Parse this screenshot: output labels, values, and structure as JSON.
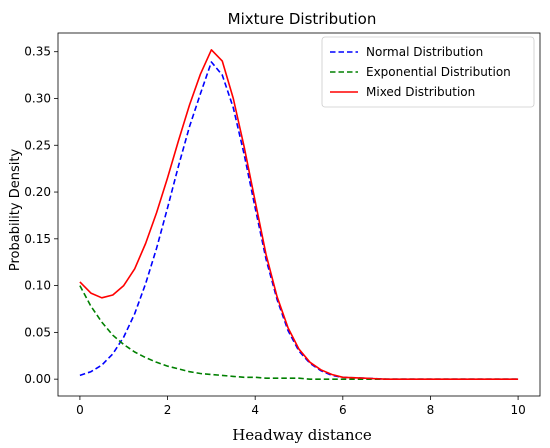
{
  "chart_data": {
    "type": "line",
    "title": "Mixture Distribution",
    "xlabel": "Headway distance",
    "ylabel": "Probability Density",
    "xlim": [
      -0.5,
      10.5
    ],
    "ylim": [
      -0.018,
      0.37
    ],
    "xticks": [
      0,
      2,
      4,
      6,
      8,
      10
    ],
    "xtick_labels": [
      "0",
      "2",
      "4",
      "6",
      "8",
      "10"
    ],
    "yticks": [
      0.0,
      0.05,
      0.1,
      0.15,
      0.2,
      0.25,
      0.3,
      0.35
    ],
    "ytick_labels": [
      "0.00",
      "0.05",
      "0.10",
      "0.15",
      "0.20",
      "0.25",
      "0.30",
      "0.35"
    ],
    "grid": false,
    "legend_position": "top-right",
    "x": [
      0,
      0.25,
      0.5,
      0.75,
      1.0,
      1.25,
      1.5,
      1.75,
      2.0,
      2.25,
      2.5,
      2.75,
      3.0,
      3.25,
      3.5,
      3.75,
      4.0,
      4.25,
      4.5,
      4.75,
      5.0,
      5.25,
      5.5,
      5.75,
      6.0,
      6.5,
      7.0,
      7.5,
      8.0,
      8.5,
      9.0,
      9.5,
      10.0
    ],
    "series": [
      {
        "name": "Normal Distribution",
        "color": "#0000ff",
        "style": "dashed",
        "values": [
          0.004,
          0.008,
          0.015,
          0.027,
          0.045,
          0.07,
          0.102,
          0.14,
          0.183,
          0.228,
          0.27,
          0.305,
          0.339,
          0.325,
          0.29,
          0.24,
          0.183,
          0.128,
          0.085,
          0.052,
          0.03,
          0.017,
          0.009,
          0.004,
          0.002,
          0.001,
          0.0,
          0.0,
          0.0,
          0.0,
          0.0,
          0.0,
          0.0
        ]
      },
      {
        "name": "Exponential Distribution",
        "color": "#008000",
        "style": "dashed",
        "values": [
          0.1,
          0.078,
          0.061,
          0.047,
          0.037,
          0.029,
          0.023,
          0.018,
          0.014,
          0.011,
          0.008,
          0.006,
          0.005,
          0.004,
          0.003,
          0.002,
          0.002,
          0.001,
          0.001,
          0.001,
          0.001,
          0.0,
          0.0,
          0.0,
          0.0,
          0.0,
          0.0,
          0.0,
          0.0,
          0.0,
          0.0,
          0.0,
          0.0
        ]
      },
      {
        "name": "Mixed Distribution",
        "color": "#ff0000",
        "style": "solid",
        "values": [
          0.104,
          0.092,
          0.087,
          0.09,
          0.1,
          0.118,
          0.145,
          0.178,
          0.215,
          0.255,
          0.293,
          0.326,
          0.352,
          0.34,
          0.3,
          0.248,
          0.19,
          0.133,
          0.088,
          0.055,
          0.032,
          0.018,
          0.01,
          0.005,
          0.002,
          0.001,
          0.0,
          0.0,
          0.0,
          0.0,
          0.0,
          0.0,
          0.0
        ]
      }
    ]
  }
}
